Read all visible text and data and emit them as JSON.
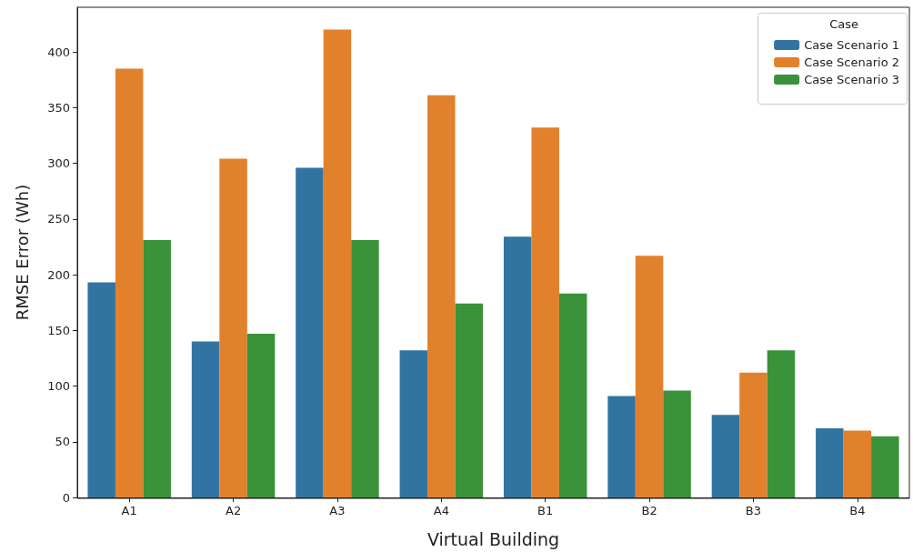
{
  "chart_data": {
    "type": "bar",
    "xlabel": "Virtual Building",
    "ylabel": "RMSE Error (Wh)",
    "legend_title": "Case",
    "categories": [
      "A1",
      "A2",
      "A3",
      "A4",
      "B1",
      "B2",
      "B3",
      "B4"
    ],
    "series": [
      {
        "name": "Case Scenario 1",
        "color": "#3274a1",
        "values": [
          193,
          140,
          296,
          132,
          234,
          91,
          74,
          62
        ]
      },
      {
        "name": "Case Scenario 2",
        "color": "#e1812c",
        "values": [
          385,
          304,
          420,
          361,
          332,
          217,
          112,
          60
        ]
      },
      {
        "name": "Case Scenario 3",
        "color": "#3a923a",
        "values": [
          231,
          147,
          231,
          174,
          183,
          96,
          132,
          55
        ]
      }
    ],
    "ylim": [
      0,
      440
    ],
    "yticks": [
      0,
      50,
      100,
      150,
      200,
      250,
      300,
      350,
      400
    ],
    "grid": false,
    "legend": "top right"
  }
}
